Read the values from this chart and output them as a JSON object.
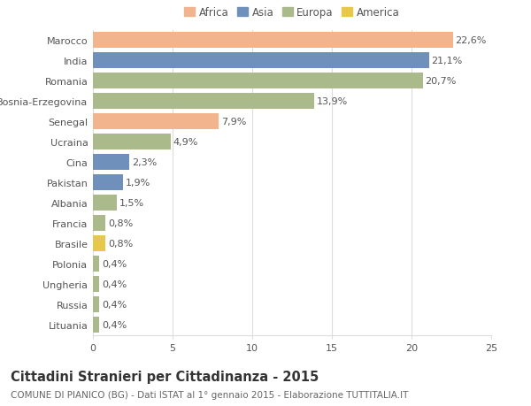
{
  "categories": [
    "Marocco",
    "India",
    "Romania",
    "Bosnia-Erzegovina",
    "Senegal",
    "Ucraina",
    "Cina",
    "Pakistan",
    "Albania",
    "Francia",
    "Brasile",
    "Polonia",
    "Ungheria",
    "Russia",
    "Lituania"
  ],
  "values": [
    22.6,
    21.1,
    20.7,
    13.9,
    7.9,
    4.9,
    2.3,
    1.9,
    1.5,
    0.8,
    0.8,
    0.4,
    0.4,
    0.4,
    0.4
  ],
  "labels": [
    "22,6%",
    "21,1%",
    "20,7%",
    "13,9%",
    "7,9%",
    "4,9%",
    "2,3%",
    "1,9%",
    "1,5%",
    "0,8%",
    "0,8%",
    "0,4%",
    "0,4%",
    "0,4%",
    "0,4%"
  ],
  "bar_colors": [
    "#F2B48C",
    "#7090BC",
    "#AABA8A",
    "#AABA8A",
    "#F2B48C",
    "#AABA8A",
    "#7090BC",
    "#7090BC",
    "#AABA8A",
    "#AABA8A",
    "#E8C84A",
    "#AABA8A",
    "#AABA8A",
    "#AABA8A",
    "#AABA8A"
  ],
  "legend_labels": [
    "Africa",
    "Asia",
    "Europa",
    "America"
  ],
  "legend_colors": [
    "#F2B48C",
    "#7090BC",
    "#AABA8A",
    "#E8C84A"
  ],
  "xlim": [
    0,
    25
  ],
  "xticks": [
    0,
    5,
    10,
    15,
    20,
    25
  ],
  "title": "Cittadini Stranieri per Cittadinanza - 2015",
  "subtitle": "COMUNE DI PIANICO (BG) - Dati ISTAT al 1° gennaio 2015 - Elaborazione TUTTITALIA.IT",
  "bg_color": "#ffffff",
  "grid_color": "#dddddd",
  "bar_height": 0.75,
  "label_fontsize": 8,
  "tick_fontsize": 8,
  "title_fontsize": 10.5,
  "subtitle_fontsize": 7.5
}
